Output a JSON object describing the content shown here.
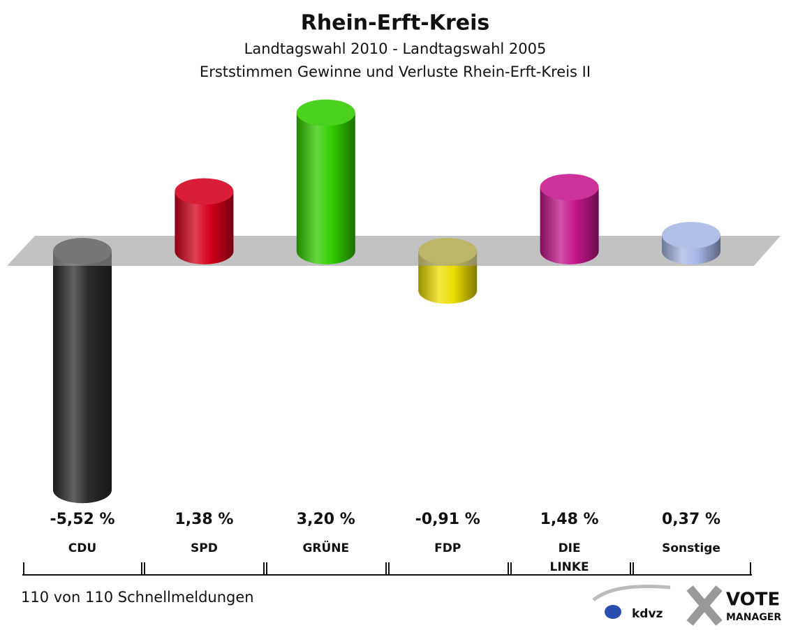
{
  "chart_data": {
    "type": "bar",
    "title": "Rhein-Erft-Kreis",
    "subtitle": "Landtagswahl 2010 - Landtagswahl 2005",
    "subtitle2": "Erststimmen Gewinne und Verluste Rhein-Erft-Kreis II",
    "categories": [
      "CDU",
      "SPD",
      "GRÜNE",
      "FDP",
      "DIE LINKE",
      "Sonstige"
    ],
    "values": [
      -5.52,
      1.38,
      3.2,
      -0.91,
      1.48,
      0.37
    ],
    "value_labels": [
      "-5,52 %",
      "1,38 %",
      "3,20 %",
      "-0,91 %",
      "1,48 %",
      "0,37 %"
    ],
    "colors": [
      "#2b2b2b",
      "#d4001c",
      "#33cc00",
      "#ecdc00",
      "#c4168c",
      "#a8b7e6"
    ],
    "footnote": "110 von 110 Schnellmeldungen",
    "logo": [
      "kdvz",
      "VOTE",
      "MANAGER"
    ]
  }
}
